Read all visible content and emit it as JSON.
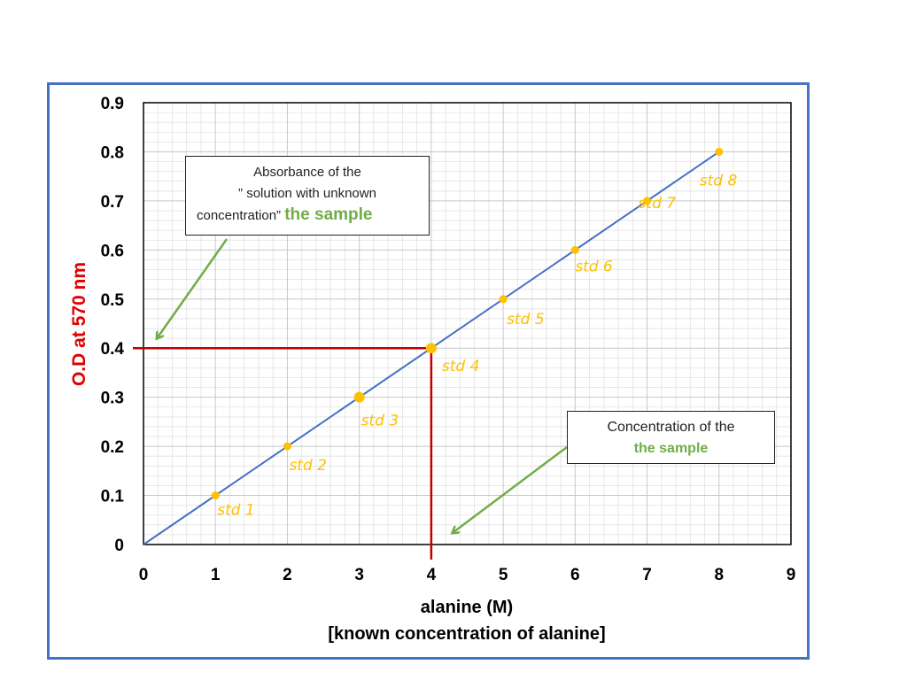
{
  "colors": {
    "frame": "#4472c4",
    "line": "#4472c4",
    "points": "#ffc000",
    "sample_lines": "#c00000",
    "y_label": "#e00000",
    "arrows": "#70ad47",
    "highlight": "#70ad47"
  },
  "chart_data": {
    "type": "line",
    "title": "",
    "xlabel": "alanine (M)",
    "xlabel_sub": "[known concentration of alanine]",
    "ylabel": "O.D at 570  nm",
    "xlim": [
      0,
      9
    ],
    "ylim": [
      0,
      0.9
    ],
    "x_ticks": [
      "0",
      "1",
      "2",
      "3",
      "4",
      "5",
      "6",
      "7",
      "8",
      "9"
    ],
    "y_ticks": [
      "0",
      "0.1",
      "0.2",
      "0.3",
      "0.4",
      "0.5",
      "0.6",
      "0.7",
      "0.8",
      "0.9"
    ],
    "grid": true,
    "series": [
      {
        "x": [
          0,
          8
        ],
        "y": [
          0,
          0.8
        ]
      }
    ],
    "standards": [
      {
        "x": 1,
        "y": 0.1,
        "label": "std 1"
      },
      {
        "x": 2,
        "y": 0.2,
        "label": "std 2"
      },
      {
        "x": 3,
        "y": 0.3,
        "label": "std 3"
      },
      {
        "x": 4,
        "y": 0.4,
        "label": "std 4"
      },
      {
        "x": 5,
        "y": 0.5,
        "label": "std 5"
      },
      {
        "x": 6,
        "y": 0.6,
        "label": "std 6"
      },
      {
        "x": 7,
        "y": 0.7,
        "label": "std 7"
      },
      {
        "x": 8,
        "y": 0.8,
        "label": "std 8"
      }
    ],
    "sample": {
      "x": 4,
      "y": 0.4
    }
  },
  "callouts": {
    "absorbance": {
      "line1": "Absorbance of the",
      "line2": "” solution with unknown",
      "line3": "concentration”",
      "highlight": "the sample"
    },
    "concentration": {
      "line1": "Concentration of the",
      "highlight": "the sample"
    }
  }
}
